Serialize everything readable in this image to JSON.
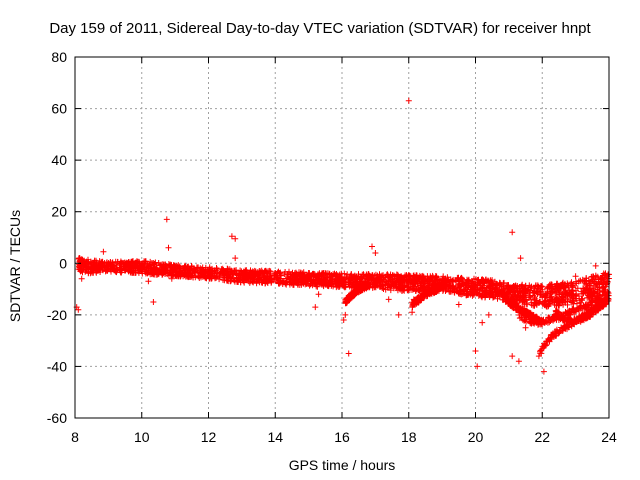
{
  "chart_data": {
    "type": "scatter",
    "title": "Day 159 of 2011, Sidereal Day-to-day VTEC variation (SDTVAR) for receiver hnpt",
    "xlabel": "GPS time / hours",
    "ylabel": "SDTVAR / TECUs",
    "xlim": [
      8,
      24
    ],
    "ylim": [
      -60,
      80
    ],
    "xticks": [
      8,
      10,
      12,
      14,
      16,
      18,
      20,
      22,
      24
    ],
    "yticks": [
      -60,
      -40,
      -20,
      0,
      20,
      40,
      60,
      80
    ],
    "grid": true,
    "marker": "+",
    "color": "#ff0000",
    "series": [
      {
        "name": "SDTVAR",
        "band": {
          "x": [
            8.1,
            8.3,
            9.0,
            10.0,
            11.0,
            12.0,
            13.0,
            14.0,
            15.0,
            16.0,
            17.0,
            18.0,
            19.0,
            20.0,
            20.5,
            21.0,
            22.0,
            23.0,
            24.0
          ],
          "lower": [
            -3,
            -4,
            -3.5,
            -4,
            -5,
            -6,
            -7.5,
            -8,
            -9,
            -9.5,
            -10,
            -11,
            -11,
            -13,
            -13.5,
            -15,
            -17,
            -16,
            -12
          ],
          "upper": [
            2.5,
            1.5,
            0.5,
            1,
            -0.5,
            -1.5,
            -2.5,
            -3,
            -3.5,
            -4,
            -4,
            -4.5,
            -5,
            -6,
            -6.5,
            -8,
            -8.5,
            -7,
            -3
          ]
        },
        "outliers": [
          [
            8.05,
            -17
          ],
          [
            8.1,
            -18
          ],
          [
            8.2,
            -6
          ],
          [
            8.85,
            4.5
          ],
          [
            10.2,
            -7
          ],
          [
            10.35,
            -15
          ],
          [
            10.75,
            17
          ],
          [
            10.8,
            6
          ],
          [
            10.9,
            -6
          ],
          [
            12.7,
            10.5
          ],
          [
            12.8,
            9.5
          ],
          [
            12.8,
            2
          ],
          [
            13.2,
            -6
          ],
          [
            15.2,
            -17
          ],
          [
            15.3,
            -12
          ],
          [
            16.05,
            -22
          ],
          [
            16.1,
            -20
          ],
          [
            16.2,
            -35
          ],
          [
            16.9,
            6.5
          ],
          [
            17.0,
            4
          ],
          [
            17.4,
            -14
          ],
          [
            17.7,
            -20
          ],
          [
            18.0,
            63
          ],
          [
            18.1,
            -19
          ],
          [
            18.15,
            -14
          ],
          [
            19.5,
            -16
          ],
          [
            20.0,
            -34
          ],
          [
            20.05,
            -40
          ],
          [
            20.2,
            -23
          ],
          [
            20.4,
            -20
          ],
          [
            21.1,
            12
          ],
          [
            21.35,
            2
          ],
          [
            21.3,
            -38
          ],
          [
            21.1,
            -36
          ],
          [
            22.05,
            -42
          ],
          [
            23.0,
            -5
          ],
          [
            23.6,
            -1
          ],
          [
            21.5,
            -25
          ],
          [
            22.5,
            -22
          ]
        ],
        "fans": [
          {
            "x": [
              20.9,
              21.2,
              21.6,
              21.9
            ],
            "y": [
              -14,
              -17,
              -20,
              -22
            ]
          },
          {
            "x": [
              21.9,
              22.0,
              22.3,
              22.8,
              23.3,
              23.8,
              24.0
            ],
            "y": [
              -36,
              -33,
              -28,
              -24,
              -20,
              -16,
              -14
            ]
          },
          {
            "x": [
              21.3,
              21.5,
              21.9,
              22.5,
              23.0,
              23.6,
              24.0
            ],
            "y": [
              -20,
              -22,
              -23,
              -21,
              -18,
              -15,
              -12
            ]
          },
          {
            "x": [
              22.4,
              22.6,
              22.9,
              23.3,
              23.7,
              24.0
            ],
            "y": [
              -19,
              -21,
              -23,
              -21,
              -17,
              -14
            ]
          },
          {
            "x": [
              18.1,
              18.5,
              19.0
            ],
            "y": [
              -16,
              -12,
              -9
            ]
          },
          {
            "x": [
              16.1,
              16.4,
              16.8
            ],
            "y": [
              -15,
              -11,
              -8
            ]
          }
        ]
      }
    ]
  }
}
